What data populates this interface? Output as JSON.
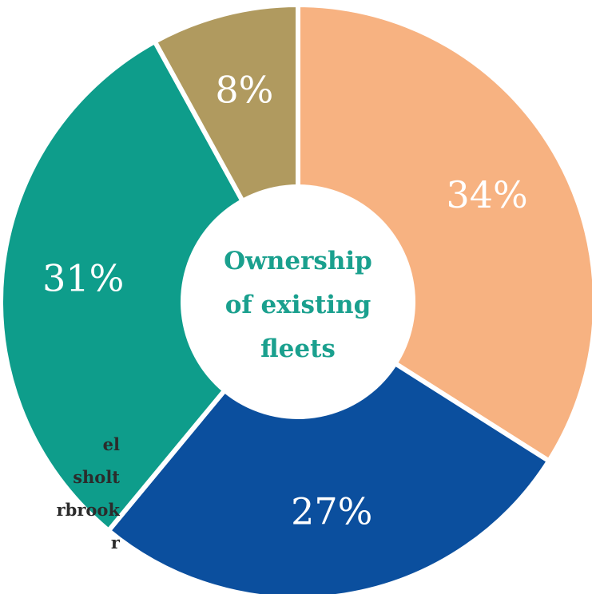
{
  "chart_data": {
    "type": "pie",
    "donut": true,
    "title_lines": [
      "Ownership",
      "of existing",
      "fleets"
    ],
    "series": [
      {
        "values": [
          34,
          27,
          31,
          8
        ],
        "labels": [
          "34%",
          "27%",
          "31%",
          "8%"
        ],
        "colors": [
          "#f7b281",
          "#0b4f9e",
          "#0e9d8b",
          "#b09a5f"
        ]
      }
    ],
    "legend_entries_partial": [
      "el",
      "sholt",
      "rbrook",
      "r"
    ],
    "legend_placement": "bottom-left (cut off)"
  }
}
